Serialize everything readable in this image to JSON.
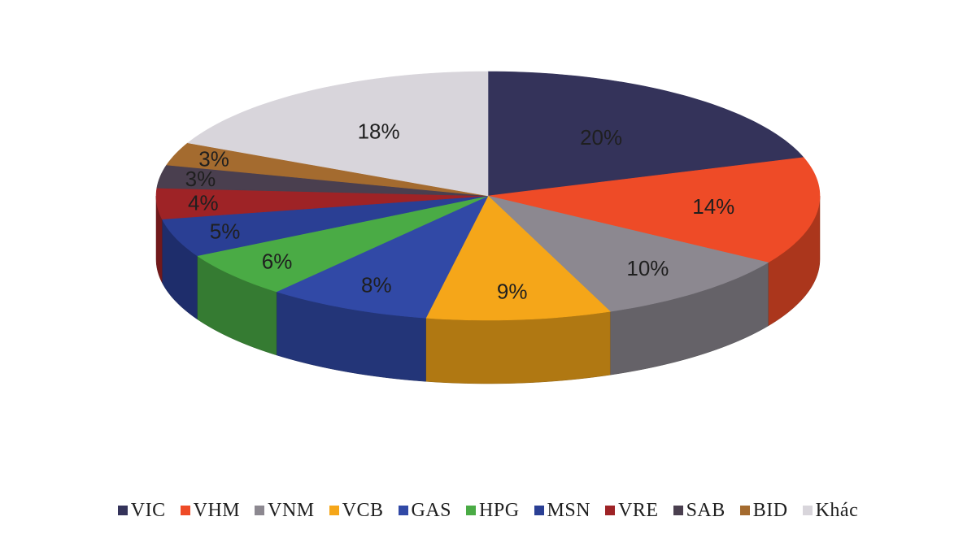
{
  "chart_data": {
    "type": "pie",
    "title": "",
    "legend_position": "bottom",
    "series": [
      {
        "label": "VIC",
        "value": 20,
        "display": "20%",
        "color": "#34335a"
      },
      {
        "label": "VHM",
        "value": 14,
        "display": "14%",
        "color": "#ee4b27"
      },
      {
        "label": "VNM",
        "value": 10,
        "display": "10%",
        "color": "#8c8890"
      },
      {
        "label": "VCB",
        "value": 9,
        "display": "9%",
        "color": "#f5a619"
      },
      {
        "label": "GAS",
        "value": 8,
        "display": "8%",
        "color": "#3149a6"
      },
      {
        "label": "HPG",
        "value": 6,
        "display": "6%",
        "color": "#4aab45"
      },
      {
        "label": "MSN",
        "value": 5,
        "display": "5%",
        "color": "#2a3f94"
      },
      {
        "label": "VRE",
        "value": 4,
        "display": "4%",
        "color": "#9e2326"
      },
      {
        "label": "SAB",
        "value": 3,
        "display": "3%",
        "color": "#4a3f4f"
      },
      {
        "label": "BID",
        "value": 3,
        "display": "3%",
        "color": "#a46b2f"
      },
      {
        "label": "Khác",
        "value": 18,
        "display": "18%",
        "color": "#d8d5db"
      }
    ]
  }
}
